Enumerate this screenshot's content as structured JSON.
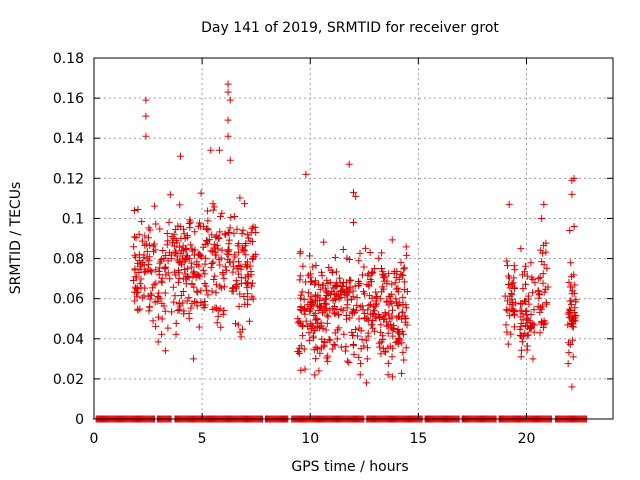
{
  "chart_data": {
    "type": "scatter",
    "title": "Day 141 of 2019, SRMTID for receiver grot",
    "xlabel": "GPS time / hours",
    "ylabel": "SRMTID / TECUs",
    "xlim": [
      0,
      24
    ],
    "ylim": [
      0,
      0.18
    ],
    "x_ticks": [
      "0",
      "5",
      "10",
      "15",
      "20"
    ],
    "y_ticks": [
      "0",
      "0.02",
      "0.04",
      "0.06",
      "0.08",
      "0.1",
      "0.12",
      "0.14",
      "0.16",
      "0.18"
    ],
    "grid": true,
    "marker": "+",
    "series_color": "#e00000",
    "clusters": [
      {
        "x_range": [
          1.8,
          7.5
        ],
        "y_center": 0.075,
        "y_spread": 0.017,
        "count": 420
      },
      {
        "x_range": [
          9.4,
          14.5
        ],
        "y_center": 0.055,
        "y_spread": 0.016,
        "count": 430
      },
      {
        "x_range": [
          19.0,
          19.5
        ],
        "y_center": 0.06,
        "y_spread": 0.012,
        "count": 40
      },
      {
        "x_range": [
          19.7,
          20.4
        ],
        "y_center": 0.055,
        "y_spread": 0.012,
        "count": 60
      },
      {
        "x_range": [
          20.5,
          21.0
        ],
        "y_center": 0.065,
        "y_spread": 0.015,
        "count": 35
      },
      {
        "x_range": [
          21.9,
          22.3
        ],
        "y_center": 0.055,
        "y_spread": 0.013,
        "count": 45
      }
    ],
    "outliers": [
      {
        "x": 2.4,
        "y": 0.159
      },
      {
        "x": 2.4,
        "y": 0.151
      },
      {
        "x": 2.4,
        "y": 0.141
      },
      {
        "x": 4.0,
        "y": 0.131
      },
      {
        "x": 5.4,
        "y": 0.134
      },
      {
        "x": 5.8,
        "y": 0.134
      },
      {
        "x": 6.2,
        "y": 0.167
      },
      {
        "x": 6.2,
        "y": 0.163
      },
      {
        "x": 6.3,
        "y": 0.159
      },
      {
        "x": 6.2,
        "y": 0.149
      },
      {
        "x": 6.2,
        "y": 0.141
      },
      {
        "x": 6.3,
        "y": 0.129
      },
      {
        "x": 4.6,
        "y": 0.03
      },
      {
        "x": 3.3,
        "y": 0.034
      },
      {
        "x": 9.8,
        "y": 0.122
      },
      {
        "x": 11.8,
        "y": 0.127
      },
      {
        "x": 12.0,
        "y": 0.113
      },
      {
        "x": 12.1,
        "y": 0.111
      },
      {
        "x": 12.0,
        "y": 0.098
      },
      {
        "x": 12.6,
        "y": 0.018
      },
      {
        "x": 13.8,
        "y": 0.021
      },
      {
        "x": 10.4,
        "y": 0.024
      },
      {
        "x": 22.1,
        "y": 0.119
      },
      {
        "x": 22.2,
        "y": 0.12
      },
      {
        "x": 22.1,
        "y": 0.112
      },
      {
        "x": 22.2,
        "y": 0.096
      },
      {
        "x": 22.0,
        "y": 0.094
      },
      {
        "x": 22.1,
        "y": 0.016
      },
      {
        "x": 20.8,
        "y": 0.107
      },
      {
        "x": 20.7,
        "y": 0.1
      },
      {
        "x": 19.2,
        "y": 0.107
      },
      {
        "x": 20.3,
        "y": 0.03
      }
    ],
    "zero_ranges": [
      [
        0.1,
        22.8
      ]
    ],
    "zero_gaps": [
      [
        2.8,
        2.9
      ],
      [
        3.6,
        3.7
      ],
      [
        7.8,
        7.9
      ],
      [
        9.0,
        9.1
      ],
      [
        12.5,
        12.6
      ],
      [
        15.2,
        15.3
      ],
      [
        16.9,
        17.0
      ],
      [
        18.6,
        18.7
      ],
      [
        21.2,
        21.3
      ]
    ]
  }
}
